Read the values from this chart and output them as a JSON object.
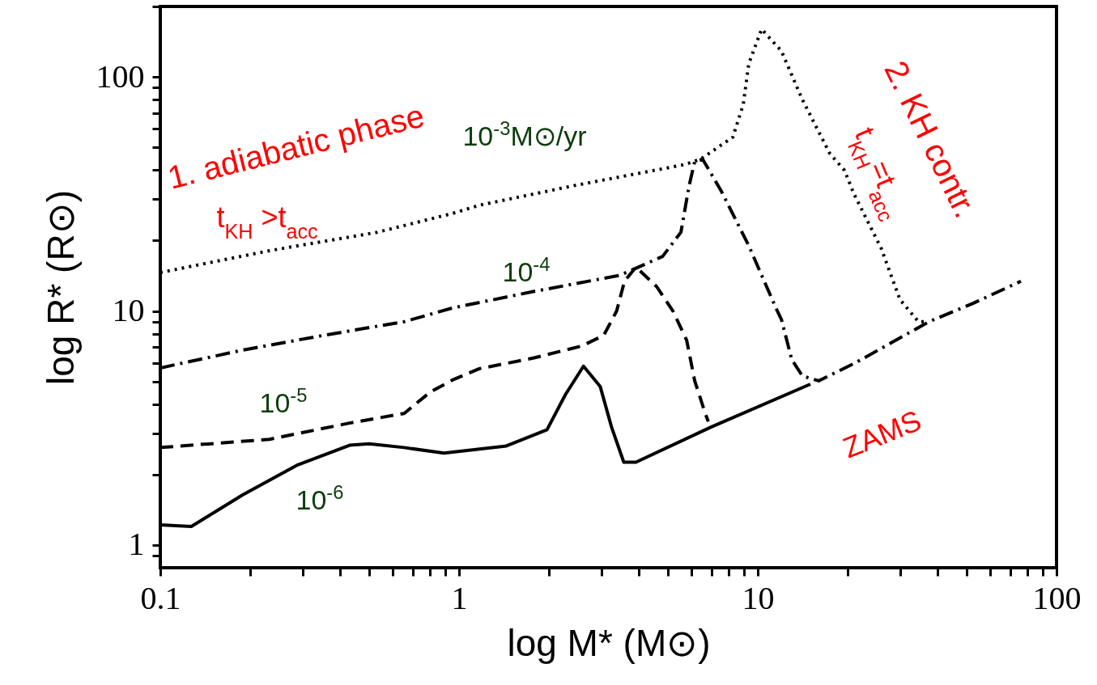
{
  "chart_data": {
    "type": "line",
    "xlabel": "log M* (M⊙)",
    "ylabel": "log R* (R⊙)",
    "log": "xy",
    "grid": false,
    "xlim": [
      0.1,
      100
    ],
    "ylim": [
      0.8,
      200
    ],
    "xticks": [
      0.1,
      {
        "value": 0.2,
        "label": null
      },
      {
        "value": 0.3,
        "label": null
      },
      {
        "value": 0.4,
        "label": null
      },
      {
        "value": 0.5,
        "label": null
      },
      {
        "value": 0.6,
        "label": null
      },
      {
        "value": 0.7,
        "label": null
      },
      {
        "value": 0.8,
        "label": null
      },
      {
        "value": 0.9,
        "label": null
      },
      1,
      {
        "value": 2,
        "label": null
      },
      {
        "value": 3,
        "label": null
      },
      {
        "value": 4,
        "label": null
      },
      {
        "value": 5,
        "label": null
      },
      {
        "value": 6,
        "label": null
      },
      {
        "value": 7,
        "label": null
      },
      {
        "value": 8,
        "label": null
      },
      {
        "value": 9,
        "label": null
      },
      10,
      {
        "value": 20,
        "label": null
      },
      {
        "value": 30,
        "label": null
      },
      {
        "value": 40,
        "label": null
      },
      {
        "value": 50,
        "label": null
      },
      {
        "value": 60,
        "label": null
      },
      {
        "value": 70,
        "label": null
      },
      {
        "value": 80,
        "label": null
      },
      {
        "value": 90,
        "label": null
      },
      100
    ],
    "yticks": [
      {
        "value": 0.9,
        "label": null
      },
      1,
      {
        "value": 2,
        "label": null
      },
      {
        "value": 3,
        "label": null
      },
      {
        "value": 4,
        "label": null
      },
      {
        "value": 5,
        "label": null
      },
      {
        "value": 6,
        "label": null
      },
      {
        "value": 7,
        "label": null
      },
      {
        "value": 8,
        "label": null
      },
      {
        "value": 9,
        "label": null
      },
      10,
      {
        "value": 20,
        "label": null
      },
      {
        "value": 30,
        "label": null
      },
      {
        "value": 40,
        "label": null
      },
      {
        "value": 50,
        "label": null
      },
      {
        "value": 60,
        "label": null
      },
      {
        "value": 70,
        "label": null
      },
      {
        "value": 80,
        "label": null
      },
      {
        "value": 90,
        "label": null
      },
      100,
      {
        "value": 200,
        "label": null
      }
    ],
    "series": [
      {
        "name": "10$^{-3}$M⊙/yr",
        "color": "#000000",
        "line_style": "dotted",
        "x": [
          0.1,
          0.232,
          0.533,
          0.95,
          1.17,
          2.42,
          5.68,
          6.43,
          8.25,
          8.94,
          9.33,
          10.3,
          12.0,
          14.1,
          17.4,
          19.5,
          21.0,
          25.9,
          29.9,
          34.5,
          37
        ],
        "values": [
          14.6,
          18.1,
          21.7,
          26.1,
          28.3,
          34.3,
          42.2,
          44.5,
          55.3,
          76.2,
          114,
          160,
          129,
          80,
          47.2,
          39.9,
          31.6,
          18.5,
          11.2,
          9.0,
          9.0
        ]
      },
      {
        "name": "10$^{-4}$",
        "color": "#000000",
        "line_style": "dashdot",
        "x": [
          0.1,
          0.189,
          0.352,
          0.655,
          0.95,
          1.77,
          3.45,
          4.8,
          5.53,
          5.89,
          6.15,
          6.54,
          7.56,
          9.33,
          11.5,
          12.0,
          13.0,
          14.1,
          16.0,
          21.4,
          37.4,
          52.7,
          76
        ],
        "values": [
          5.71,
          6.81,
          7.87,
          9.0,
          10.3,
          12.1,
          14.2,
          17.1,
          21.7,
          34.3,
          43.5,
          44.5,
          32.4,
          19.0,
          10.3,
          9.2,
          6.19,
          5.28,
          5.03,
          6.04,
          9.0,
          10.8,
          13.4
        ]
      },
      {
        "name": "10$^{-5}$",
        "color": "#000000",
        "line_style": "dashed",
        "x": [
          0.1,
          0.232,
          0.43,
          0.655,
          0.8,
          0.95,
          1.17,
          1.77,
          2.58,
          3.05,
          3.37,
          3.58,
          3.91,
          4.59,
          5.2,
          5.78,
          6.15,
          6.67,
          6.83
        ],
        "values": [
          2.61,
          2.83,
          3.32,
          3.65,
          4.5,
          5.07,
          5.67,
          6.29,
          7.09,
          7.87,
          10,
          13.4,
          15.4,
          12.7,
          10,
          7.5,
          5.03,
          3.65,
          3.37
        ]
      },
      {
        "name": "10$^{-6}$",
        "color": "#000000",
        "line_style": "solid",
        "x": [
          0.1,
          0.127,
          0.189,
          0.286,
          0.43,
          0.5,
          0.655,
          0.89,
          1.44,
          1.97,
          2.27,
          2.61,
          2.97,
          3.24,
          3.56,
          3.91,
          6.97,
          15.0
        ],
        "values": [
          1.22,
          1.2,
          1.64,
          2.19,
          2.67,
          2.71,
          2.61,
          2.47,
          2.65,
          3.11,
          4.39,
          5.81,
          4.75,
          3.19,
          2.26,
          2.26,
          3.19,
          4.87
        ]
      }
    ],
    "annotations": [
      "1. adiabatic phase",
      "t$_{KH}$ >t$_{acc}$",
      "2. KH contr.",
      "t$_{KH}$=t$_{acc}$",
      "ZAMS"
    ]
  }
}
